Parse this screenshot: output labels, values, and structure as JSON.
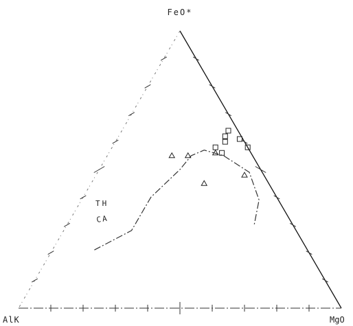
{
  "chart_data": {
    "type": "ternary",
    "title": "",
    "vertices": {
      "top": "FeO*",
      "left": "AlK",
      "right": "MgO"
    },
    "curve_labels": [
      "TH",
      "CA"
    ],
    "triangle_points": [
      {
        "a": 0.55,
        "b": 0.25,
        "c": 0.2
      },
      {
        "a": 0.45,
        "b": 0.2,
        "c": 0.35
      },
      {
        "a": 0.55,
        "b": 0.2,
        "c": 0.25
      },
      {
        "a": 0.56,
        "b": 0.11,
        "c": 0.33
      },
      {
        "a": 0.48,
        "b": 0.06,
        "c": 0.46
      }
    ],
    "square_points": [
      {
        "a": 0.58,
        "b": 0.1,
        "c": 0.32
      },
      {
        "a": 0.56,
        "b": 0.09,
        "c": 0.35
      },
      {
        "a": 0.6,
        "b": 0.06,
        "c": 0.34
      },
      {
        "a": 0.62,
        "b": 0.05,
        "c": 0.33
      },
      {
        "a": 0.64,
        "b": 0.03,
        "c": 0.33
      },
      {
        "a": 0.61,
        "b": 0.01,
        "c": 0.38
      },
      {
        "a": 0.58,
        "b": 0.0,
        "c": 0.42
      }
    ],
    "boundary_curve": [
      [
        0.21,
        0.66,
        0.13
      ],
      [
        0.28,
        0.51,
        0.21
      ],
      [
        0.4,
        0.39,
        0.21
      ],
      [
        0.5,
        0.25,
        0.25
      ],
      [
        0.55,
        0.19,
        0.26
      ],
      [
        0.57,
        0.14,
        0.29
      ],
      [
        0.55,
        0.09,
        0.36
      ],
      [
        0.49,
        0.04,
        0.47
      ],
      [
        0.39,
        0.06,
        0.55
      ],
      [
        0.3,
        0.12,
        0.58
      ]
    ]
  }
}
